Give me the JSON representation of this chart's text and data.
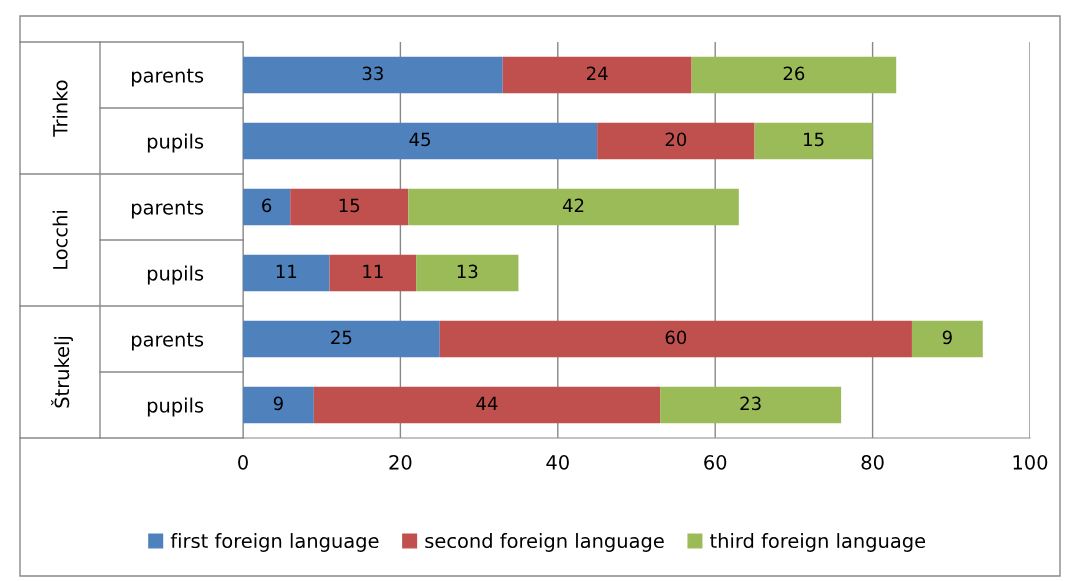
{
  "chart_data": {
    "type": "bar",
    "orientation": "horizontal",
    "stacked": true,
    "categories": [
      "parents",
      "pupils",
      "parents",
      "pupils",
      "parents",
      "pupils"
    ],
    "annotations": [
      "Trinko",
      "Locchi",
      "Štrukelj"
    ],
    "series": [
      {
        "name": "first foreign language",
        "color": "#4f81bd",
        "values": [
          33,
          45,
          6,
          11,
          25,
          9
        ]
      },
      {
        "name": "second foreign language",
        "color": "#c0504d",
        "values": [
          24,
          20,
          15,
          11,
          60,
          44
        ]
      },
      {
        "name": "third foreign language",
        "color": "#9bbb59",
        "values": [
          26,
          15,
          42,
          13,
          9,
          23
        ]
      }
    ],
    "xlim": [
      0,
      100
    ],
    "xticks": [
      0,
      20,
      40,
      60,
      80,
      100
    ],
    "grid": "x",
    "legend": "bottom",
    "data_labels": true
  }
}
